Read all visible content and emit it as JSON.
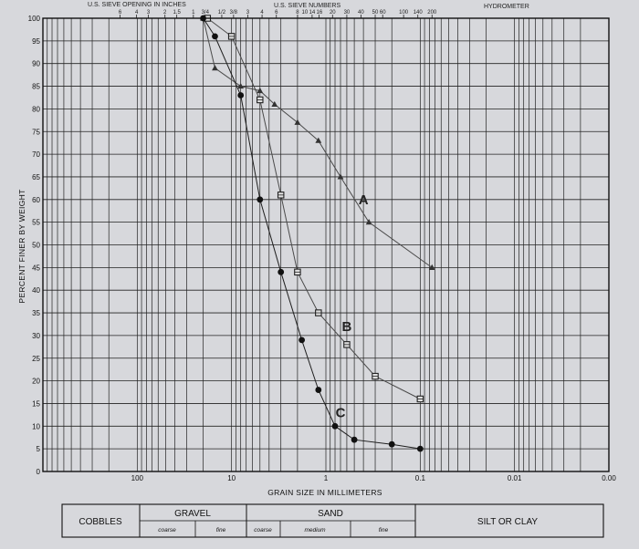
{
  "chart_data": {
    "type": "line",
    "x_scale": "log",
    "x_ascending_left_to_right": false,
    "xlim": [
      1000,
      0.001
    ],
    "ylim": [
      0,
      100
    ],
    "grid": true,
    "xlabel": "GRAIN SIZE IN MILLIMETERS",
    "ylabel": "PERCENT FINER BY WEIGHT",
    "y_ticks": [
      0,
      5,
      10,
      15,
      20,
      25,
      30,
      35,
      40,
      45,
      50,
      55,
      60,
      65,
      70,
      75,
      80,
      85,
      90,
      95,
      100
    ],
    "x_ticks": [
      {
        "value": 100,
        "label": "100"
      },
      {
        "value": 10,
        "label": "10"
      },
      {
        "value": 1,
        "label": "1"
      },
      {
        "value": 0.1,
        "label": "0.1"
      },
      {
        "value": 0.01,
        "label": "0.01"
      },
      {
        "value": 0.001,
        "label": "0.00"
      }
    ],
    "top_headers": {
      "sieve_openings_title": "U.S. SIEVE OPENING IN INCHES",
      "sieve_openings": [
        {
          "value": 152,
          "label": "6"
        },
        {
          "value": 101.6,
          "label": "4"
        },
        {
          "value": 76.2,
          "label": "3"
        },
        {
          "value": 50.8,
          "label": "2"
        },
        {
          "value": 38.1,
          "label": "1.5"
        },
        {
          "value": 25.4,
          "label": "1"
        },
        {
          "value": 19.05,
          "label": "3/4"
        },
        {
          "value": 12.7,
          "label": "1/2"
        },
        {
          "value": 9.525,
          "label": "3/8"
        }
      ],
      "sieve_numbers_title": "U.S. SIEVE NUMBERS",
      "sieve_numbers": [
        {
          "value": 6.73,
          "label": "3"
        },
        {
          "value": 4.75,
          "label": "4"
        },
        {
          "value": 3.35,
          "label": "6"
        },
        {
          "value": 2.0,
          "label": "8"
        },
        {
          "value": 2.0,
          "label": "10"
        },
        {
          "value": 1.4,
          "label": "14"
        },
        {
          "value": 1.18,
          "label": "16"
        },
        {
          "value": 0.85,
          "label": "20"
        },
        {
          "value": 0.6,
          "label": "30"
        },
        {
          "value": 0.425,
          "label": "40"
        },
        {
          "value": 0.3,
          "label": "50"
        },
        {
          "value": 0.25,
          "label": "60"
        },
        {
          "value": 0.15,
          "label": "100"
        },
        {
          "value": 0.106,
          "label": "140"
        },
        {
          "value": 0.075,
          "label": "200"
        }
      ],
      "hydrometer_title": "HYDROMETER"
    },
    "series": [
      {
        "name": "A",
        "color": "#4a4a4a",
        "marker": "triangle",
        "points": [
          [
            20,
            100
          ],
          [
            15,
            89
          ],
          [
            8,
            85
          ],
          [
            5,
            84
          ],
          [
            3.5,
            81
          ],
          [
            2,
            77
          ],
          [
            1.2,
            73
          ],
          [
            0.7,
            65
          ],
          [
            0.35,
            55
          ],
          [
            0.075,
            45
          ]
        ],
        "label_at": [
          0.4,
          60
        ]
      },
      {
        "name": "B",
        "color": "#4a4a4a",
        "marker": "square",
        "points": [
          [
            18,
            100
          ],
          [
            10,
            96
          ],
          [
            5,
            82
          ],
          [
            3,
            61
          ],
          [
            2,
            44
          ],
          [
            1.2,
            35
          ],
          [
            0.6,
            28
          ],
          [
            0.3,
            21
          ],
          [
            0.1,
            16
          ]
        ],
        "label_at": [
          0.6,
          32
        ]
      },
      {
        "name": "C",
        "color": "#1e1e1e",
        "marker": "circle",
        "points": [
          [
            20,
            100
          ],
          [
            15,
            96
          ],
          [
            8,
            83
          ],
          [
            5,
            60
          ],
          [
            3,
            44
          ],
          [
            1.8,
            29
          ],
          [
            1.2,
            18
          ],
          [
            0.8,
            10
          ],
          [
            0.5,
            7
          ],
          [
            0.2,
            6
          ],
          [
            0.1,
            5
          ]
        ],
        "label_at": [
          0.7,
          13
        ]
      }
    ]
  },
  "classification": {
    "cobbles": "COBBLES",
    "gravel": "GRAVEL",
    "gravel_coarse": "coarse",
    "gravel_fine": "fine",
    "sand": "SAND",
    "sand_coarse": "coarse",
    "sand_medium": "medium",
    "sand_fine": "fine",
    "silt_clay": "SILT OR CLAY"
  }
}
